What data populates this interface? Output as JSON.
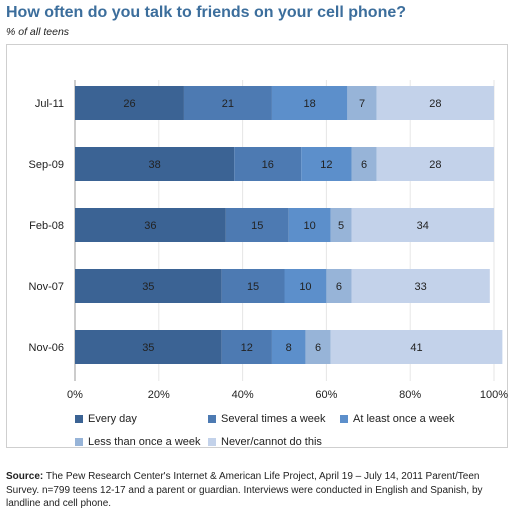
{
  "chart_data": {
    "type": "bar",
    "stacked": true,
    "orientation": "horizontal",
    "title": "How often do you talk to friends on your cell phone?",
    "subtitle": "% of all teens",
    "categories": [
      "Jul-11",
      "Sep-09",
      "Feb-08",
      "Nov-07",
      "Nov-06"
    ],
    "series": [
      {
        "name": "Every day",
        "color": "#3b6394",
        "values": [
          26,
          38,
          36,
          35,
          35
        ]
      },
      {
        "name": "Several times a week",
        "color": "#4d7ab2",
        "values": [
          21,
          16,
          15,
          15,
          12
        ]
      },
      {
        "name": "At least once a week",
        "color": "#5c8fcb",
        "values": [
          18,
          12,
          10,
          10,
          8
        ]
      },
      {
        "name": "Less than once a week",
        "color": "#97b4d8",
        "values": [
          7,
          6,
          5,
          6,
          6
        ]
      },
      {
        "name": "Never/cannot do this",
        "color": "#c3d2ea",
        "values": [
          28,
          28,
          34,
          33,
          41
        ]
      }
    ],
    "xlim": [
      0,
      100
    ],
    "xticks": [
      "0%",
      "20%",
      "40%",
      "60%",
      "80%",
      "100%"
    ],
    "grid": true,
    "legend": "bottom"
  },
  "source": {
    "label": "Source:",
    "text": "The Pew Research Center's Internet & American Life Project, April 19 – July 14, 2011 Parent/Teen Survey. n=799 teens 12-17 and a parent or guardian. Interviews were conducted in English and Spanish, by landline and cell phone."
  }
}
